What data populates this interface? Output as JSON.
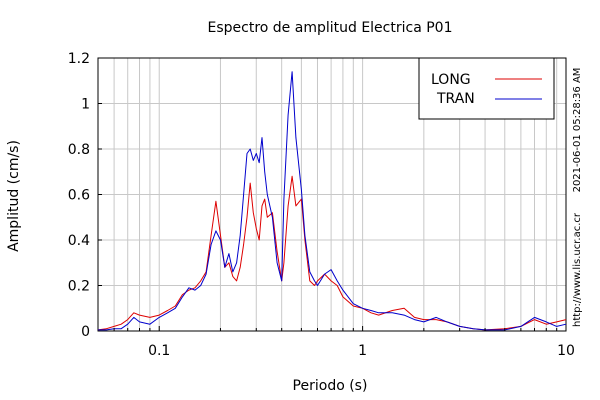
{
  "chart_data": {
    "type": "line",
    "title": "Espectro de amplitud Electrica P01",
    "xlabel": "Periodo (s)",
    "ylabel": "Amplitud (cm/s)",
    "xscale": "log",
    "xlim": [
      0.05,
      10
    ],
    "ylim": [
      0,
      1.2
    ],
    "grid": true,
    "legend_position": "top-right",
    "x_tick_labels": [
      "0.1",
      "1",
      "10"
    ],
    "y_tick_labels": [
      "0",
      "0.2",
      "0.4",
      "0.6",
      "0.8",
      "1",
      "1.2"
    ],
    "side_text": [
      "2021-06-01 05:28:36 AM",
      "http://www.lis.ucr.ac.cr"
    ],
    "series": [
      {
        "name": "LONG",
        "color": "#dd0000",
        "x": [
          0.05,
          0.055,
          0.06,
          0.065,
          0.07,
          0.075,
          0.08,
          0.09,
          0.1,
          0.11,
          0.12,
          0.13,
          0.14,
          0.15,
          0.16,
          0.17,
          0.18,
          0.19,
          0.2,
          0.21,
          0.22,
          0.23,
          0.24,
          0.25,
          0.26,
          0.27,
          0.28,
          0.29,
          0.3,
          0.31,
          0.32,
          0.33,
          0.34,
          0.36,
          0.38,
          0.4,
          0.41,
          0.43,
          0.45,
          0.47,
          0.5,
          0.52,
          0.55,
          0.58,
          0.6,
          0.65,
          0.7,
          0.75,
          0.8,
          0.9,
          1.0,
          1.1,
          1.2,
          1.4,
          1.6,
          1.8,
          2.0,
          2.3,
          2.6,
          3.0,
          3.5,
          4.0,
          5.0,
          6.0,
          7.0,
          8.0,
          9.0,
          10.0
        ],
        "values": [
          0.005,
          0.01,
          0.02,
          0.03,
          0.05,
          0.08,
          0.07,
          0.06,
          0.07,
          0.09,
          0.11,
          0.16,
          0.18,
          0.19,
          0.22,
          0.26,
          0.42,
          0.57,
          0.42,
          0.28,
          0.3,
          0.24,
          0.22,
          0.28,
          0.38,
          0.5,
          0.65,
          0.52,
          0.45,
          0.4,
          0.55,
          0.58,
          0.5,
          0.52,
          0.35,
          0.22,
          0.3,
          0.55,
          0.68,
          0.55,
          0.58,
          0.4,
          0.22,
          0.2,
          0.22,
          0.25,
          0.22,
          0.2,
          0.15,
          0.11,
          0.1,
          0.08,
          0.07,
          0.09,
          0.1,
          0.06,
          0.05,
          0.05,
          0.04,
          0.02,
          0.01,
          0.005,
          0.01,
          0.02,
          0.05,
          0.03,
          0.04,
          0.05
        ]
      },
      {
        "name": "TRAN",
        "color": "#0000cc",
        "x": [
          0.05,
          0.055,
          0.06,
          0.065,
          0.07,
          0.075,
          0.08,
          0.09,
          0.1,
          0.11,
          0.12,
          0.13,
          0.14,
          0.15,
          0.16,
          0.17,
          0.18,
          0.19,
          0.2,
          0.21,
          0.22,
          0.23,
          0.24,
          0.25,
          0.26,
          0.27,
          0.28,
          0.29,
          0.3,
          0.31,
          0.32,
          0.33,
          0.34,
          0.36,
          0.38,
          0.4,
          0.41,
          0.43,
          0.45,
          0.47,
          0.5,
          0.52,
          0.55,
          0.58,
          0.6,
          0.65,
          0.7,
          0.75,
          0.8,
          0.9,
          1.0,
          1.1,
          1.2,
          1.4,
          1.6,
          1.8,
          2.0,
          2.3,
          2.6,
          3.0,
          3.5,
          4.0,
          5.0,
          6.0,
          7.0,
          8.0,
          9.0,
          10.0
        ],
        "values": [
          0.005,
          0.005,
          0.01,
          0.01,
          0.03,
          0.06,
          0.04,
          0.03,
          0.06,
          0.08,
          0.1,
          0.15,
          0.19,
          0.18,
          0.2,
          0.25,
          0.38,
          0.44,
          0.4,
          0.28,
          0.34,
          0.26,
          0.3,
          0.42,
          0.6,
          0.78,
          0.8,
          0.75,
          0.78,
          0.74,
          0.85,
          0.7,
          0.6,
          0.5,
          0.3,
          0.22,
          0.58,
          0.95,
          1.14,
          0.85,
          0.62,
          0.42,
          0.26,
          0.22,
          0.2,
          0.25,
          0.27,
          0.22,
          0.18,
          0.12,
          0.1,
          0.09,
          0.08,
          0.08,
          0.07,
          0.05,
          0.04,
          0.06,
          0.04,
          0.02,
          0.01,
          0.005,
          0.005,
          0.02,
          0.06,
          0.04,
          0.02,
          0.03
        ]
      }
    ]
  }
}
